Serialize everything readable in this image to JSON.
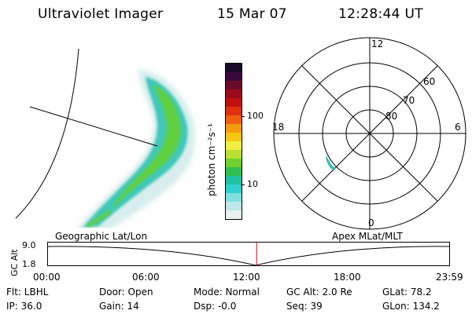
{
  "header": {
    "title": "Ultraviolet Imager",
    "date": "15 Mar 07",
    "time": "12:28:44 UT"
  },
  "colorbar": {
    "unit_label": "photon cm⁻²s⁻¹",
    "ticks": [
      "100",
      "10"
    ],
    "colors": [
      "#1a0a2a",
      "#3a0a3a",
      "#6a0a2a",
      "#9a0a1a",
      "#c01010",
      "#e03010",
      "#f06010",
      "#f49a10",
      "#f4c810",
      "#f0f040",
      "#b8e030",
      "#70d030",
      "#30c050",
      "#20c0a0",
      "#30d0d0",
      "#80e0e0",
      "#c0e8e8",
      "#e8f0f0"
    ]
  },
  "polar": {
    "mlt_labels": {
      "top": "12",
      "left": "18",
      "right": "6",
      "bottom": "0"
    },
    "lat_labels": [
      "60",
      "70",
      "80"
    ]
  },
  "timeline": {
    "left_label": "Geographic Lat/Lon",
    "right_label": "Apex MLat/MLT",
    "y_axis_label": "GC Alt",
    "y_ticks": [
      "9.0",
      "1.8"
    ],
    "x_ticks": [
      "00:00",
      "06:00",
      "12:00",
      "18:00",
      "23:59"
    ],
    "marker_time_hours": 12.48
  },
  "info": {
    "flt": "Flt: LBHL",
    "ip": "IP: 36.0",
    "door": "Door: Open",
    "gain": "Gain: 14",
    "mode": "Mode: Normal",
    "dsp": "Dsp:   -0.0",
    "gc_alt": "GC Alt: 2.0 Re",
    "seq": "Seq: 39",
    "glat": "GLat:  78.2",
    "glon": "GLon: 134.2"
  },
  "colors": {
    "marker": "#c01010",
    "ink": "#000000"
  }
}
